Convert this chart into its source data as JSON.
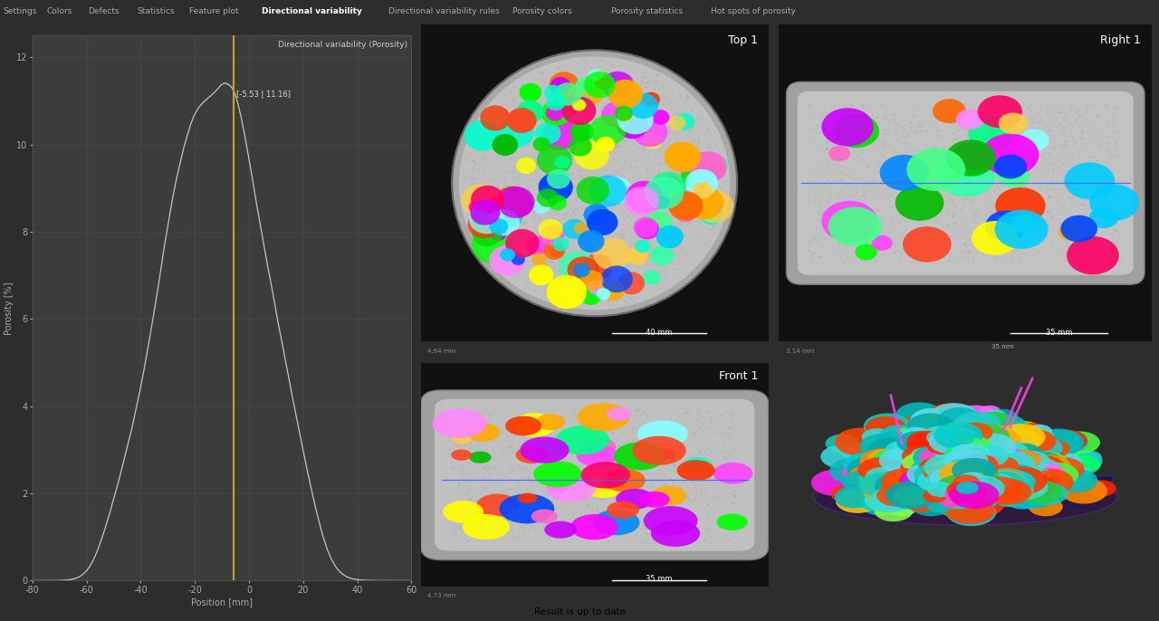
{
  "bg_color": "#2d2d2d",
  "plot_bg": "#3c3c3c",
  "grid_color": "#4a4a4a",
  "line_color": "#cccccc",
  "gold_line_x": -5.53,
  "gold_line_color": "#c8a020",
  "annotation_text": "[-5.53 | 11.16]",
  "title": "Directional variability (Porosity)",
  "xlabel": "Position [mm]",
  "ylabel": "Porosity [%]",
  "xlim": [
    -80,
    60
  ],
  "ylim": [
    0,
    12.5
  ],
  "ytick_labels": [
    "0",
    "2",
    "4",
    "6",
    "8",
    "10",
    "12"
  ],
  "ytick_vals": [
    0,
    2,
    4,
    6,
    8,
    10,
    12
  ],
  "xtick_labels": [
    "-80",
    "-60",
    "-40",
    "-20",
    "0",
    "20",
    "40",
    "60"
  ],
  "xtick_vals": [
    -80,
    -60,
    -40,
    -20,
    0,
    20,
    40,
    60
  ],
  "tab_labels": [
    "Settings",
    "Colors",
    "Defects",
    "Statistics",
    "Feature plot",
    "Directional variability",
    "Directional variability rules",
    "Porosity colors",
    "Porosity statistics",
    "Hot spots of porosity"
  ],
  "active_tab": "Directional variability",
  "status_bar_text": "Result is up to date",
  "status_color": "#00cc00",
  "dark_panel_bg": "#1e1e1e",
  "view_bg": "#111111",
  "ct_gray": "#888888",
  "ct_inner": "#b0b0b0",
  "top1_label": "Top 1",
  "right1_label": "Right 1",
  "front1_label": "Front 1",
  "label_color": "#ffffff",
  "scale_top": "40 mm",
  "scale_right": "35 mm",
  "scale_front": "35 mm",
  "blue_line_color": "#4466ff",
  "bubble_colors_main": [
    "#00ff00",
    "#00dd00",
    "#00bb00",
    "#ff00ff",
    "#ff44ff",
    "#ff3300",
    "#ff6600",
    "#ffaa00",
    "#00ccff",
    "#0088ff",
    "#0044ff",
    "#44ff88",
    "#00ffcc",
    "#ff0066",
    "#cc00ff",
    "#33ffaa",
    "#ffff00",
    "#ff88ff",
    "#88ffff",
    "#ff66cc",
    "#ff4422",
    "#00ff88",
    "#ffcc44"
  ]
}
